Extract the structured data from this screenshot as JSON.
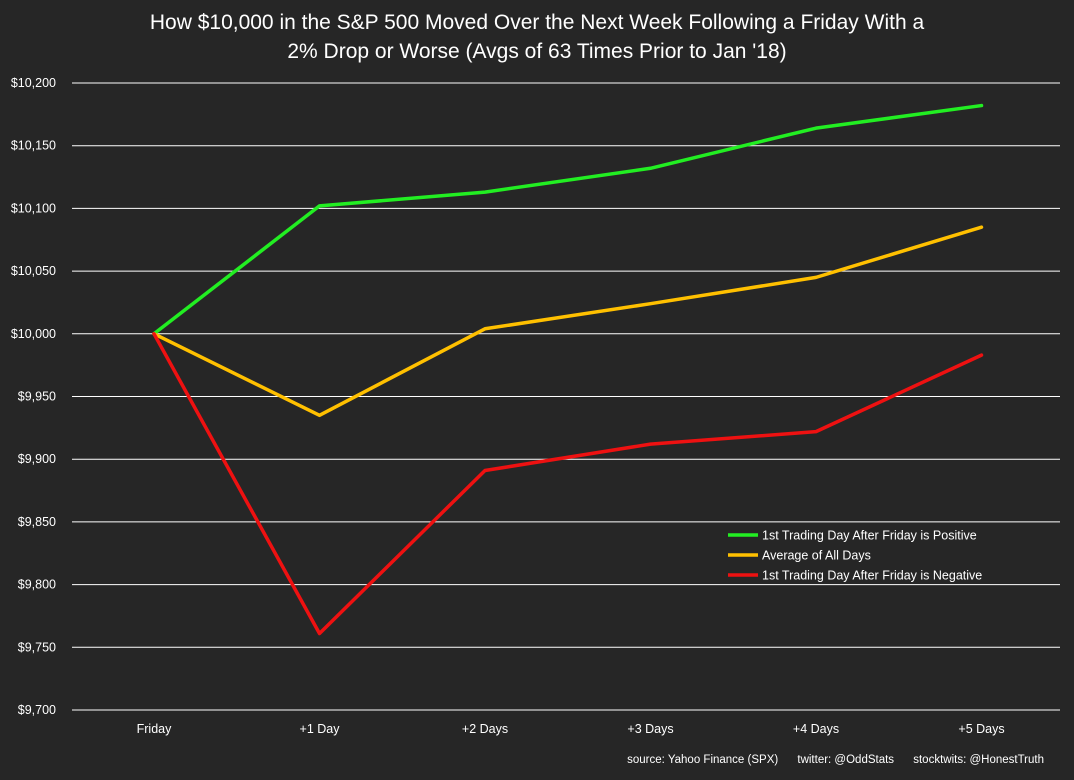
{
  "chart_data": {
    "type": "line",
    "title_line1": "How $10,000 in the S&P 500 Moved Over the Next Week Following a Friday With a",
    "title_line2": "2% Drop or Worse (Avgs of 63 Times  Prior to Jan '18)",
    "categories": [
      "Friday",
      "+1 Day",
      "+2 Days",
      "+3 Days",
      "+4 Days",
      "+5 Days"
    ],
    "ylim": [
      9700,
      10200
    ],
    "y_ticks": [
      9700,
      9750,
      9800,
      9850,
      9900,
      9950,
      10000,
      10050,
      10100,
      10150,
      10200
    ],
    "y_tick_labels": [
      "$9,700",
      "$9,750",
      "$9,800",
      "$9,850",
      "$9,900",
      "$9,950",
      "$10,000",
      "$10,050",
      "$10,100",
      "$10,150",
      "$10,200"
    ],
    "grid": true,
    "legend_position": "bottom-right",
    "series": [
      {
        "name": "1st Trading Day After Friday is Positive",
        "color": "#22ee22",
        "values": [
          10000,
          10102,
          10113,
          10132,
          10164,
          10182
        ]
      },
      {
        "name": "Average of All Days",
        "color": "#ffc000",
        "values": [
          10000,
          9935,
          10004,
          10024,
          10045,
          10085
        ]
      },
      {
        "name": "1st Trading Day After Friday is Negative",
        "color": "#ee1111",
        "values": [
          10000,
          9761,
          9891,
          9912,
          9922,
          9983
        ]
      }
    ]
  },
  "footer": {
    "source": "source: Yahoo Finance (SPX)",
    "twitter": "twitter: @OddStats",
    "stocktwits": "stocktwits: @HonestTruth"
  },
  "colors": {
    "background": "#262626",
    "grid": "#ffffff",
    "text": "#ffffff"
  }
}
